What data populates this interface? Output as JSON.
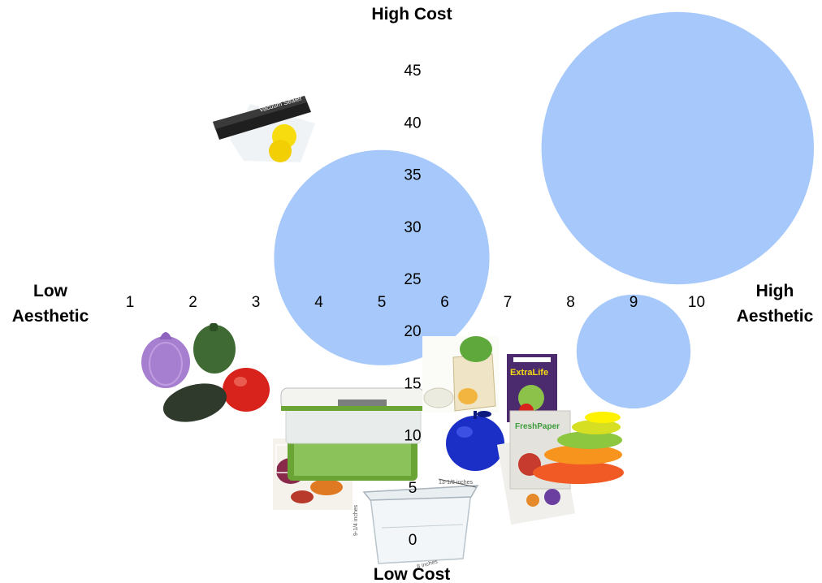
{
  "chart_data": {
    "type": "scatter",
    "x_axis": {
      "ticks": [
        1,
        2,
        3,
        4,
        5,
        6,
        7,
        8,
        9,
        10
      ],
      "label_left": [
        "Low",
        "Aesthetic"
      ],
      "label_right": [
        "High",
        "Aesthetic"
      ]
    },
    "y_axis": {
      "ticks": [
        0,
        5,
        10,
        15,
        20,
        25,
        30,
        35,
        40,
        45
      ],
      "label_top": "High Cost",
      "label_bottom": "Low Cost"
    },
    "bubbles": [
      {
        "x": 5.0,
        "y": 27.0,
        "size": 170
      },
      {
        "x": 9.7,
        "y": 37.5,
        "size": 215
      },
      {
        "x": 9.0,
        "y": 18.0,
        "size": 90
      }
    ],
    "products": [
      {
        "name": "vacuum-sealer",
        "label": "Vacuum Sealer",
        "x": 2.3,
        "y": 40
      },
      {
        "name": "veggie-savers",
        "label": "",
        "x": 2.0,
        "y": 17
      },
      {
        "name": "produce-bags",
        "label": "",
        "x": 3.6,
        "y": 6
      },
      {
        "name": "produce-keeper",
        "label": "",
        "x": 4.6,
        "y": 11
      },
      {
        "name": "crisper-bin",
        "label": "",
        "x": 5.5,
        "y": 2
      },
      {
        "name": "mesh-produce-bags",
        "label": "",
        "x": 6.3,
        "y": 16
      },
      {
        "name": "blue-apple",
        "label": "",
        "x": 6.5,
        "y": 10
      },
      {
        "name": "extralife-saver",
        "label": "ExtraLife",
        "x": 7.0,
        "y": 14
      },
      {
        "name": "freshpaper",
        "label": "FreshPaper",
        "x": 7.2,
        "y": 7
      },
      {
        "name": "silicone-food-huggers",
        "label": "",
        "x": 8.0,
        "y": 9
      }
    ],
    "colors": {
      "bubble": "#a6c8fa",
      "onion": "#a77fd0",
      "pepper": "#3f6a34",
      "tomato": "#d8231c",
      "avocado": "#2f3a2c",
      "green_lid": "#6aa435",
      "blue_apple": "#1b2fc7",
      "sealer": "#1f1f1f",
      "lemon": "#f7dd10"
    },
    "grid": false,
    "legend": "none"
  }
}
